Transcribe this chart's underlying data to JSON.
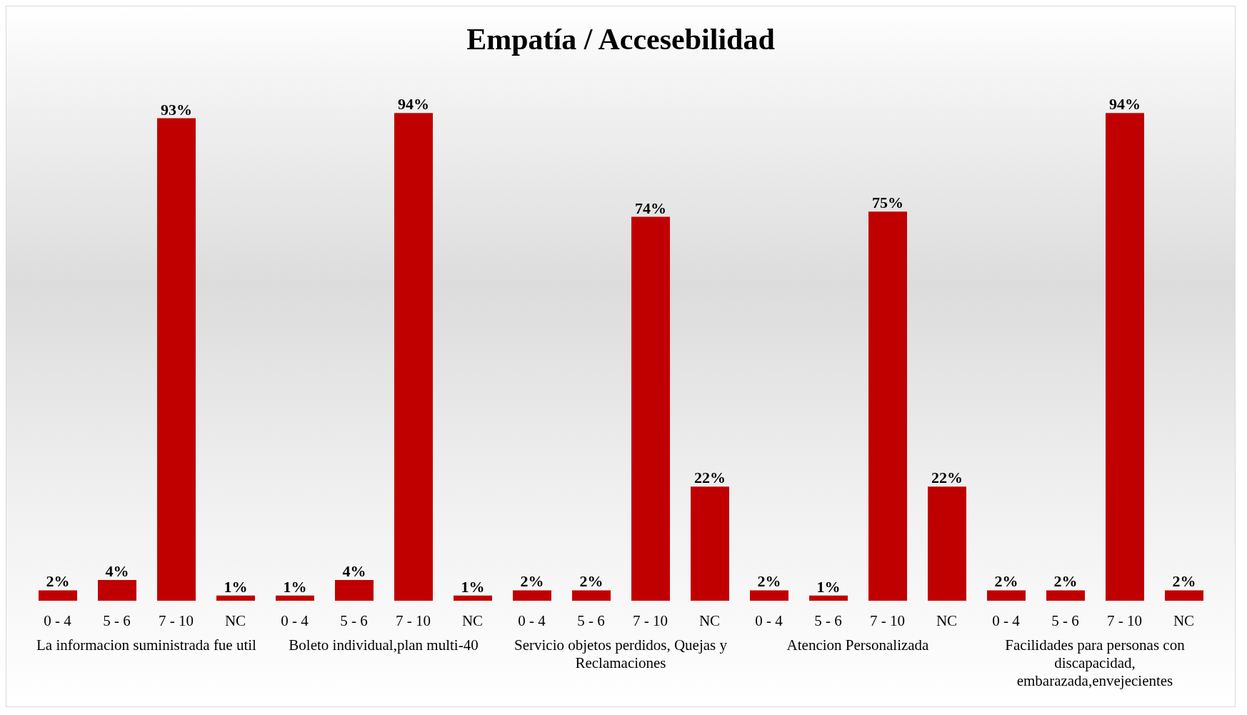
{
  "chart_data": {
    "type": "bar",
    "title": "Empatía / Accesebilidad",
    "categories": [
      "0 - 4",
      "5 - 6",
      "7 - 10",
      "NC",
      "0 - 4",
      "5 - 6",
      "7 - 10",
      "NC",
      "0 - 4",
      "5 - 6",
      "7 - 10",
      "NC",
      "0 - 4",
      "5 - 6",
      "7 - 10",
      "NC",
      "0 - 4",
      "5 - 6",
      "7 - 10",
      "NC"
    ],
    "values": [
      2,
      4,
      93,
      1,
      1,
      4,
      94,
      1,
      2,
      2,
      74,
      22,
      2,
      1,
      75,
      22,
      2,
      2,
      94,
      2
    ],
    "value_labels": [
      "2%",
      "4%",
      "93%",
      "1%",
      "1%",
      "4%",
      "94%",
      "1%",
      "2%",
      "2%",
      "74%",
      "22%",
      "2%",
      "1%",
      "75%",
      "22%",
      "2%",
      "2%",
      "94%",
      "2%"
    ],
    "color": "#c00000",
    "grid": false,
    "legend": false,
    "annotations": [
      "La informacion suministrada fue util",
      "Boleto individual,plan multi-40",
      "Servicio objetos perdidos, Quejas y Reclamaciones",
      "Atencion Personalizada",
      "Facilidades para personas con discapacidad, embarazada,envejecientes"
    ]
  }
}
